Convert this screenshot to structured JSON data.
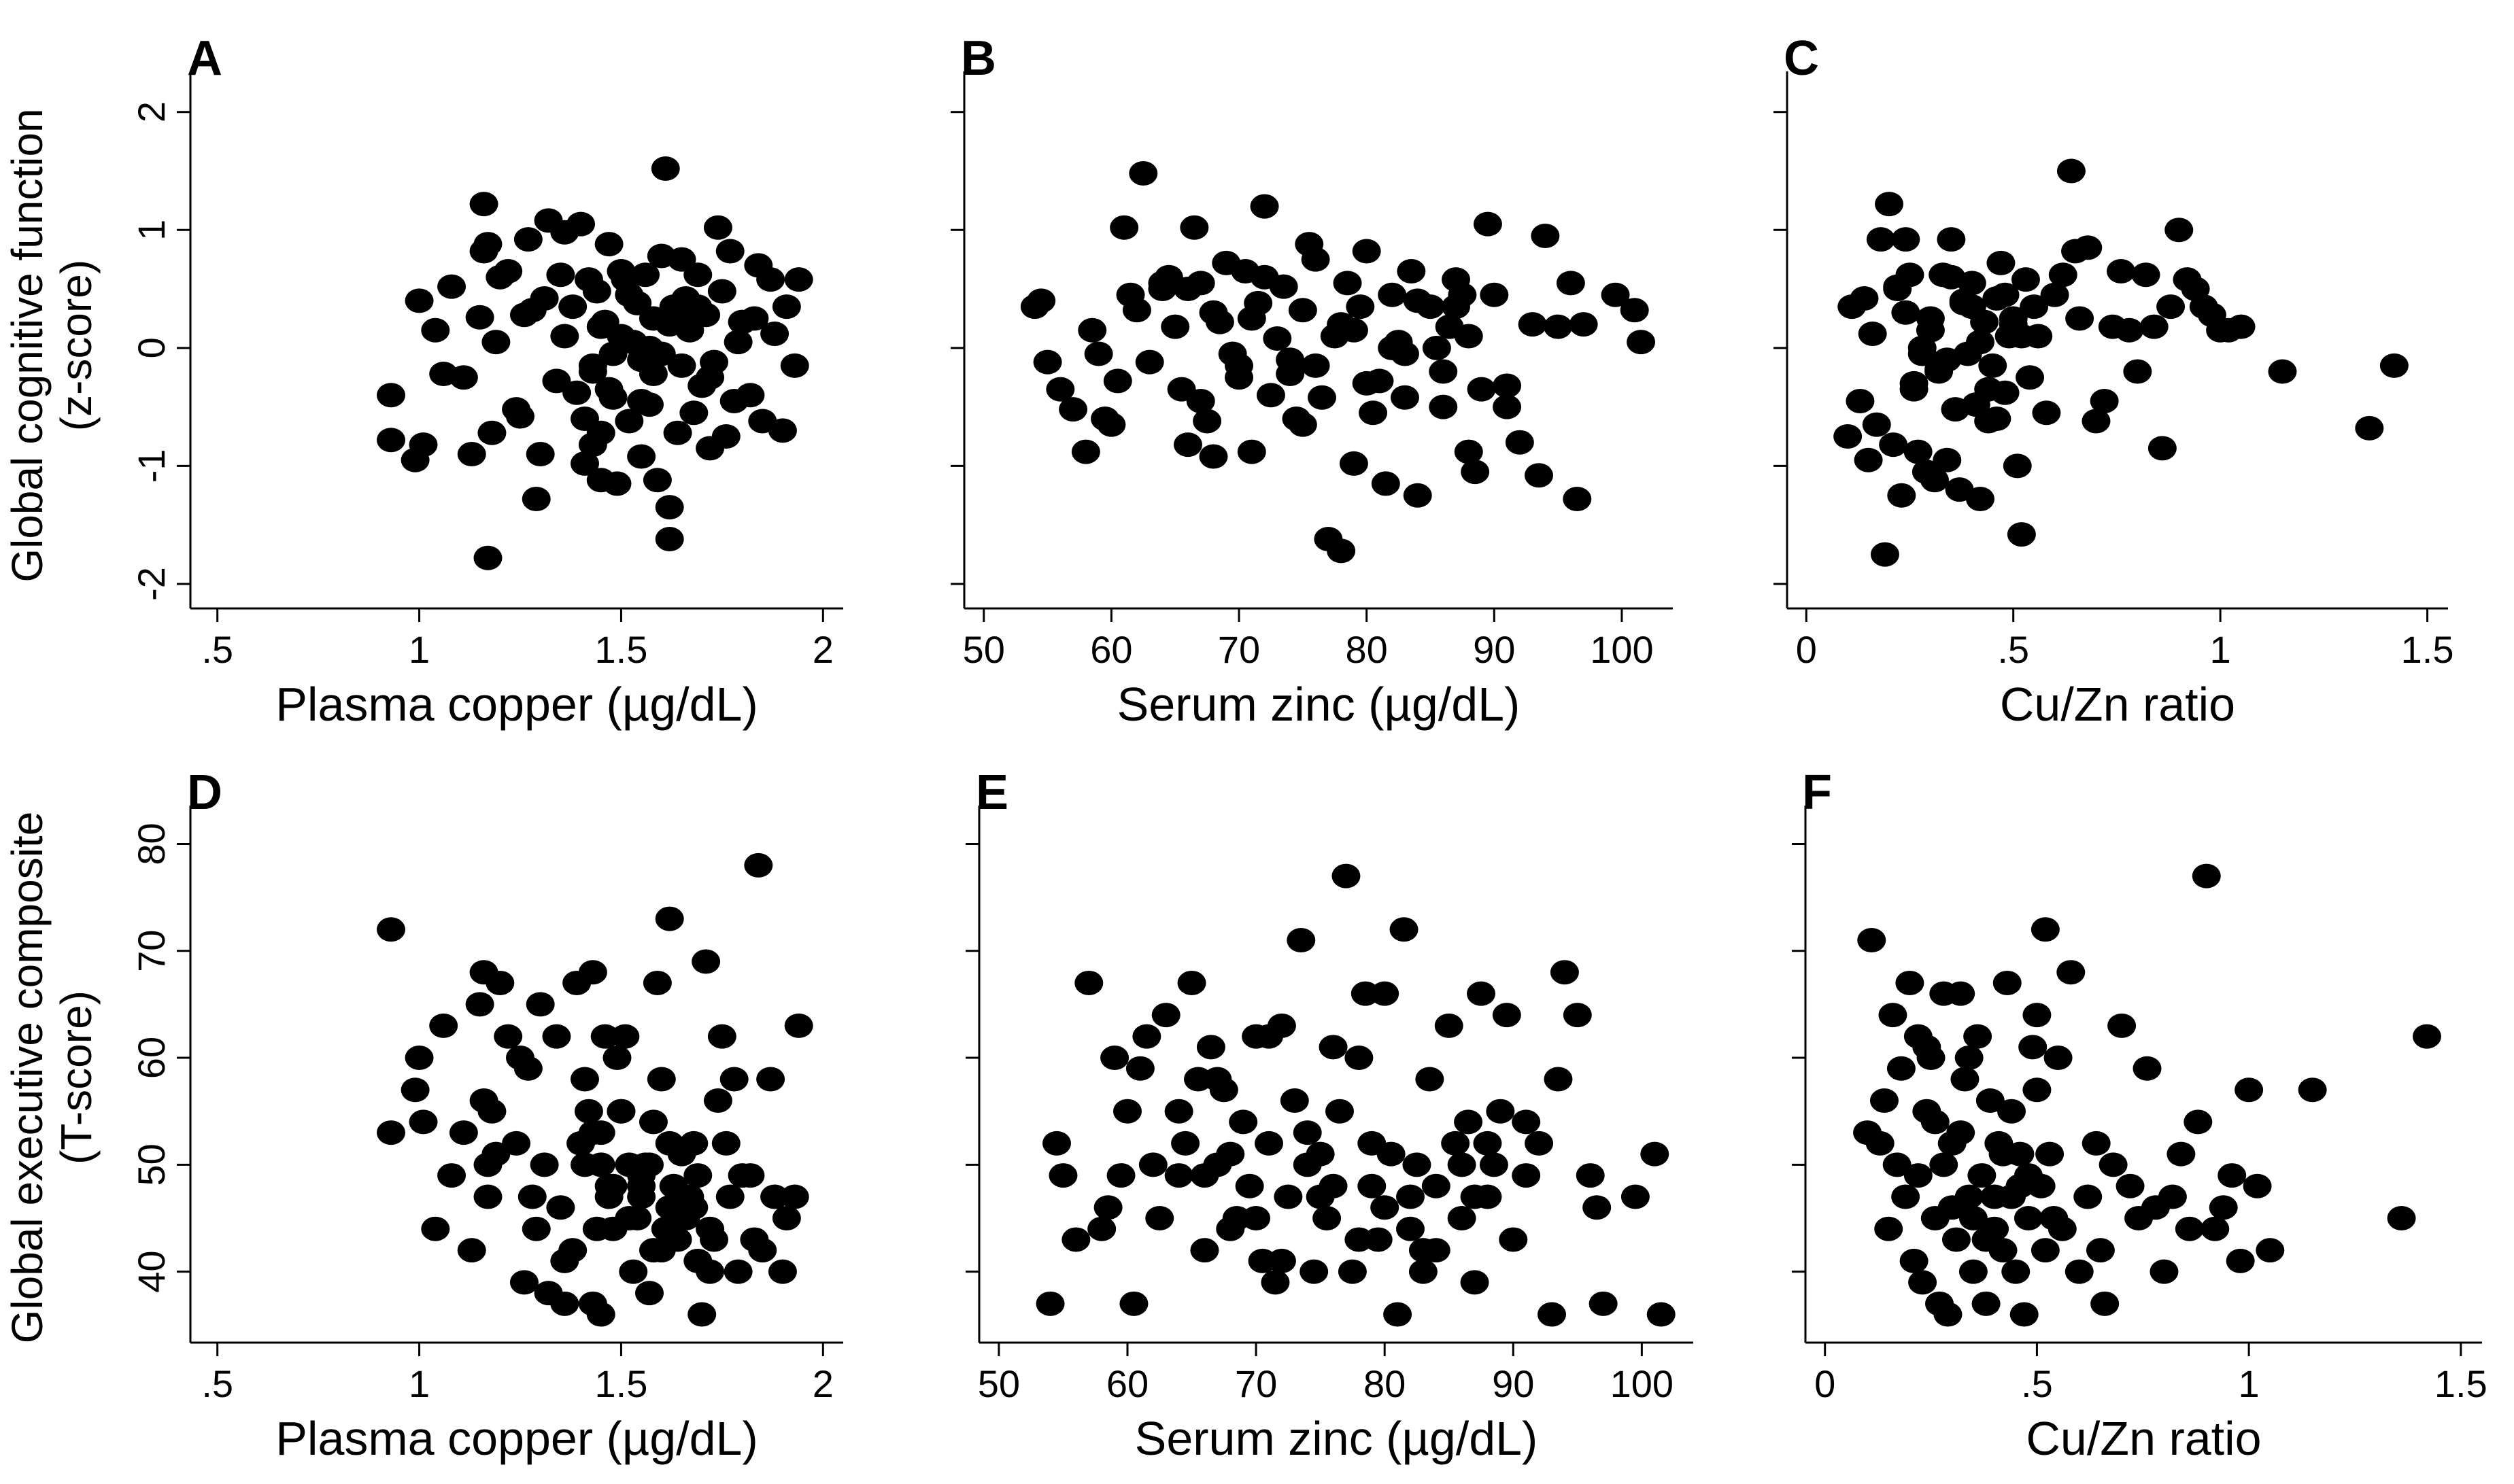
{
  "row_titles": [
    {
      "line1": "Global cognitive function",
      "line2": "(z-score)"
    },
    {
      "line1": "Global executive composite",
      "line2": "(T-score)"
    }
  ],
  "point_color": "#000000",
  "chart_data": [
    {
      "panel": "A",
      "type": "scatter",
      "xlabel": "Plasma copper (µg/dL)",
      "xlim": [
        0.45,
        2.05
      ],
      "ylim": [
        -2.15,
        2.2
      ],
      "xticks": [
        0.5,
        1,
        1.5,
        2
      ],
      "xtick_labels": [
        ".5",
        "1",
        "1.5",
        "2"
      ],
      "yticks": [
        -2,
        -1,
        0,
        1,
        2
      ],
      "ytick_labels": [
        "-2",
        "-1",
        "0",
        "1",
        "2"
      ],
      "x": [
        0.93,
        0.93,
        0.99,
        1.0,
        1.01,
        1.04,
        1.06,
        1.08,
        1.11,
        1.13,
        1.15,
        1.16,
        1.16,
        1.17,
        1.17,
        1.18,
        1.19,
        1.2,
        1.22,
        1.24,
        1.25,
        1.26,
        1.27,
        1.28,
        1.29,
        1.3,
        1.31,
        1.32,
        1.34,
        1.35,
        1.36,
        1.38,
        1.39,
        1.4,
        1.41,
        1.42,
        1.43,
        1.43,
        1.44,
        1.45,
        1.45,
        1.46,
        1.47,
        1.48,
        1.49,
        1.5,
        1.51,
        1.52,
        1.53,
        1.54,
        1.55,
        1.56,
        1.57,
        1.58,
        1.59,
        1.6,
        1.61,
        1.62,
        1.62,
        1.63,
        1.64,
        1.65,
        1.66,
        1.67,
        1.68,
        1.69,
        1.7,
        1.71,
        1.72,
        1.73,
        1.74,
        1.75,
        1.76,
        1.77,
        1.78,
        1.79,
        1.8,
        1.82,
        1.83,
        1.84,
        1.85,
        1.87,
        1.88,
        1.9,
        1.91,
        1.93,
        1.94,
        1.45,
        1.48,
        1.52,
        1.58,
        1.41,
        1.36,
        1.55,
        1.62,
        1.68,
        1.72,
        1.5,
        1.47,
        1.6,
        1.57,
        1.43,
        1.65,
        1.69,
        1.55
      ],
      "y": [
        -0.4,
        -0.78,
        -0.95,
        0.4,
        -0.82,
        0.15,
        -0.22,
        0.52,
        -0.25,
        -0.9,
        0.26,
        0.82,
        1.22,
        -1.78,
        0.88,
        -0.72,
        0.05,
        0.6,
        0.65,
        -0.52,
        -0.58,
        0.28,
        0.92,
        0.32,
        -1.28,
        -0.9,
        0.42,
        1.08,
        -0.28,
        0.62,
        0.98,
        0.35,
        -0.38,
        1.05,
        -0.98,
        0.58,
        -0.15,
        -0.82,
        0.48,
        -0.72,
        -1.12,
        0.22,
        0.88,
        -0.42,
        -1.15,
        0.1,
        0.58,
        -0.62,
        0.05,
        0.38,
        -0.92,
        0.62,
        -0.48,
        -0.22,
        -1.12,
        0.78,
        1.52,
        -1.35,
        -1.62,
        0.35,
        -0.72,
        -0.15,
        0.42,
        0.15,
        -0.55,
        0.62,
        -0.32,
        0.28,
        -0.85,
        -0.12,
        1.02,
        0.48,
        -0.75,
        0.82,
        -0.45,
        0.05,
        0.22,
        -0.4,
        0.25,
        0.7,
        -0.62,
        0.58,
        0.12,
        -0.7,
        0.35,
        -0.15,
        0.58,
        0.18,
        -0.05,
        0.45,
        0.25,
        -0.6,
        0.1,
        -0.1,
        0.2,
        0.3,
        -0.25,
        0.65,
        -0.35,
        -0.05,
        0.0,
        -0.2,
        0.75,
        0.35,
        -0.45
      ]
    },
    {
      "panel": "B",
      "type": "scatter",
      "xlabel": "Serum zinc (µg/dL)",
      "xlim": [
        49,
        104
      ],
      "ylim": [
        -2.15,
        2.2
      ],
      "xticks": [
        50,
        60,
        70,
        80,
        90,
        100
      ],
      "xtick_labels": [
        "50",
        "60",
        "70",
        "80",
        "90",
        "100"
      ],
      "yticks": [
        -2,
        -1,
        0,
        1,
        2
      ],
      "ytick_labels": [
        "",
        "",
        "",
        "",
        ""
      ],
      "x": [
        54,
        54.5,
        55,
        56,
        57,
        58,
        58.5,
        59,
        59.5,
        60,
        60.5,
        61,
        61.5,
        62,
        62.5,
        63,
        64,
        64.5,
        65,
        65.5,
        66,
        66.5,
        67,
        67.5,
        68,
        68.5,
        69,
        69.5,
        70,
        70.5,
        71,
        71.5,
        72,
        72.5,
        73,
        73.5,
        74,
        74.5,
        75,
        75.5,
        76,
        76.5,
        77,
        77.5,
        78,
        78.5,
        79,
        79.5,
        80,
        80.5,
        81,
        81.5,
        82,
        82.5,
        83,
        83.5,
        84,
        85,
        85.5,
        86,
        86.5,
        87,
        87.5,
        88,
        88.5,
        89,
        89.5,
        90,
        91,
        92,
        93,
        93.5,
        94,
        95,
        96,
        96.5,
        97,
        99.5,
        101,
        101.5,
        66,
        68,
        70,
        72,
        74,
        76,
        78,
        80,
        82,
        84,
        86,
        88,
        64,
        67,
        71,
        75,
        79,
        83,
        87,
        91
      ],
      "y": [
        0.35,
        0.4,
        -0.12,
        -0.35,
        -0.52,
        -0.88,
        0.15,
        -0.05,
        -0.6,
        -0.65,
        -0.28,
        1.02,
        0.45,
        0.32,
        1.48,
        -0.12,
        0.55,
        0.6,
        0.18,
        -0.35,
        -0.82,
        1.02,
        0.55,
        -0.62,
        -0.92,
        0.22,
        0.72,
        -0.05,
        -0.15,
        0.65,
        -0.88,
        0.38,
        1.2,
        -0.4,
        0.08,
        0.52,
        -0.22,
        -0.6,
        0.32,
        0.88,
        -0.15,
        -0.42,
        -1.62,
        0.1,
        -1.72,
        0.55,
        -0.98,
        0.35,
        0.82,
        -0.55,
        -0.28,
        -1.15,
        0.45,
        0.05,
        -0.42,
        0.65,
        -1.25,
        0.35,
        0.0,
        -0.5,
        0.18,
        0.58,
        0.45,
        -0.88,
        -1.05,
        -0.35,
        1.05,
        0.45,
        -0.32,
        -0.8,
        0.2,
        -1.08,
        0.95,
        0.18,
        0.55,
        -1.28,
        0.2,
        0.45,
        0.32,
        0.05,
        0.5,
        0.3,
        -0.25,
        0.6,
        -0.1,
        0.75,
        0.2,
        -0.3,
        0.0,
        0.4,
        -0.2,
        0.1,
        0.5,
        -0.45,
        0.25,
        -0.65,
        0.15,
        -0.05,
        0.35,
        -0.5
      ]
    },
    {
      "panel": "C",
      "type": "scatter",
      "xlabel": "Cu/Zn ratio",
      "xlim": [
        -0.03,
        1.55
      ],
      "ylim": [
        -2.15,
        2.2
      ],
      "xticks": [
        0,
        0.5,
        1,
        1.5
      ],
      "xtick_labels": [
        "0",
        ".5",
        "1",
        "1.5"
      ],
      "yticks": [
        -2,
        -1,
        0,
        1,
        2
      ],
      "ytick_labels": [
        "",
        "",
        "",
        "",
        ""
      ],
      "x": [
        0.1,
        0.11,
        0.13,
        0.14,
        0.15,
        0.16,
        0.17,
        0.18,
        0.19,
        0.2,
        0.21,
        0.22,
        0.23,
        0.24,
        0.25,
        0.26,
        0.27,
        0.28,
        0.29,
        0.3,
        0.31,
        0.32,
        0.33,
        0.34,
        0.35,
        0.36,
        0.37,
        0.38,
        0.39,
        0.4,
        0.41,
        0.42,
        0.43,
        0.44,
        0.45,
        0.46,
        0.47,
        0.48,
        0.49,
        0.5,
        0.51,
        0.52,
        0.53,
        0.54,
        0.55,
        0.56,
        0.58,
        0.6,
        0.62,
        0.64,
        0.65,
        0.66,
        0.68,
        0.7,
        0.72,
        0.74,
        0.76,
        0.78,
        0.8,
        0.82,
        0.84,
        0.86,
        0.88,
        0.9,
        0.92,
        0.94,
        0.96,
        0.98,
        1.0,
        1.02,
        1.05,
        1.15,
        1.36,
        1.42,
        0.22,
        0.26,
        0.3,
        0.34,
        0.38,
        0.42,
        0.46,
        0.5,
        0.35,
        0.28,
        0.44,
        0.52,
        0.4,
        0.32,
        0.24,
        0.48
      ],
      "y": [
        -0.75,
        0.35,
        -0.45,
        0.42,
        -0.95,
        0.12,
        -0.65,
        0.92,
        -1.75,
        1.22,
        -0.82,
        0.52,
        -1.25,
        0.92,
        0.62,
        -0.35,
        -0.88,
        -0.05,
        -1.05,
        0.15,
        -1.12,
        -0.18,
        0.62,
        -0.95,
        0.92,
        -0.52,
        -1.2,
        0.38,
        -0.05,
        0.55,
        -0.48,
        -1.28,
        0.22,
        -0.62,
        -0.15,
        0.42,
        0.72,
        -0.38,
        0.1,
        0.25,
        -1.0,
        -1.58,
        0.58,
        -0.25,
        0.35,
        0.1,
        -0.55,
        0.45,
        0.62,
        1.5,
        0.82,
        0.25,
        0.85,
        -0.62,
        -0.45,
        0.18,
        0.65,
        0.15,
        -0.2,
        0.62,
        0.18,
        -0.85,
        0.35,
        1.0,
        0.58,
        0.5,
        0.35,
        0.28,
        0.15,
        0.15,
        0.18,
        -0.2,
        -0.68,
        -0.15,
        0.5,
        -0.3,
        0.25,
        -0.1,
        0.4,
        0.05,
        -0.6,
        0.2,
        0.6,
        0.0,
        -0.35,
        0.1,
        0.35,
        -0.2,
        0.3,
        0.45
      ]
    },
    {
      "panel": "D",
      "type": "scatter",
      "xlabel": "Plasma copper (µg/dL)",
      "xlim": [
        0.45,
        2.05
      ],
      "ylim": [
        34,
        82
      ],
      "xticks": [
        0.5,
        1,
        1.5,
        2
      ],
      "xtick_labels": [
        ".5",
        "1",
        "1.5",
        "2"
      ],
      "yticks": [
        40,
        50,
        60,
        70,
        80
      ],
      "ytick_labels": [
        "40",
        "50",
        "60",
        "70",
        "80"
      ],
      "x": [
        0.93,
        0.93,
        0.99,
        1.0,
        1.01,
        1.04,
        1.06,
        1.08,
        1.11,
        1.13,
        1.15,
        1.16,
        1.16,
        1.17,
        1.17,
        1.18,
        1.19,
        1.2,
        1.22,
        1.24,
        1.25,
        1.26,
        1.27,
        1.28,
        1.29,
        1.3,
        1.31,
        1.32,
        1.34,
        1.35,
        1.36,
        1.38,
        1.39,
        1.4,
        1.41,
        1.42,
        1.43,
        1.43,
        1.44,
        1.45,
        1.45,
        1.46,
        1.47,
        1.48,
        1.49,
        1.5,
        1.51,
        1.52,
        1.53,
        1.54,
        1.55,
        1.56,
        1.57,
        1.58,
        1.59,
        1.6,
        1.61,
        1.62,
        1.62,
        1.63,
        1.64,
        1.65,
        1.66,
        1.67,
        1.68,
        1.69,
        1.7,
        1.71,
        1.72,
        1.73,
        1.74,
        1.75,
        1.76,
        1.77,
        1.78,
        1.79,
        1.8,
        1.82,
        1.83,
        1.84,
        1.85,
        1.87,
        1.88,
        1.9,
        1.91,
        1.93,
        1.94,
        1.45,
        1.48,
        1.52,
        1.58,
        1.41,
        1.36,
        1.55,
        1.62,
        1.68,
        1.72,
        1.5,
        1.47,
        1.6,
        1.57,
        1.43,
        1.65,
        1.69,
        1.55
      ],
      "y": [
        72,
        53,
        57,
        60,
        54,
        44,
        63,
        49,
        53,
        42,
        65,
        68,
        56,
        50,
        47,
        55,
        51,
        67,
        62,
        52,
        60,
        39,
        59,
        47,
        44,
        65,
        50,
        38,
        62,
        46,
        37,
        42,
        67,
        52,
        50,
        55,
        37,
        68,
        44,
        53,
        36,
        62,
        48,
        44,
        60,
        55,
        62,
        50,
        40,
        45,
        47,
        50,
        38,
        42,
        67,
        58,
        44,
        73,
        52,
        48,
        43,
        51,
        45,
        47,
        46,
        49,
        36,
        69,
        40,
        43,
        56,
        62,
        52,
        47,
        58,
        40,
        49,
        49,
        43,
        78,
        42,
        58,
        47,
        40,
        45,
        47,
        63,
        50,
        48,
        45,
        54,
        58,
        41,
        49,
        46,
        52,
        44,
        55,
        47,
        42,
        50,
        53,
        46,
        41,
        48
      ]
    },
    {
      "panel": "E",
      "type": "scatter",
      "xlabel": "Serum zinc (µg/dL)",
      "xlim": [
        49,
        104
      ],
      "ylim": [
        34,
        82
      ],
      "xticks": [
        50,
        60,
        70,
        80,
        90,
        100
      ],
      "xtick_labels": [
        "50",
        "60",
        "70",
        "80",
        "90",
        "100"
      ],
      "yticks": [
        40,
        50,
        60,
        70,
        80
      ],
      "ytick_labels": [
        "",
        "",
        "",
        "",
        ""
      ],
      "x": [
        54,
        54.5,
        55,
        56,
        57,
        58,
        58.5,
        59,
        59.5,
        60,
        60.5,
        61,
        61.5,
        62,
        62.5,
        63,
        64,
        64.5,
        65,
        65.5,
        66,
        66.5,
        67,
        67.5,
        68,
        68.5,
        69,
        69.5,
        70,
        70.5,
        71,
        71.5,
        72,
        72.5,
        73,
        73.5,
        74,
        74.5,
        75,
        75.5,
        76,
        76.5,
        77,
        77.5,
        78,
        78.5,
        79,
        79.5,
        80,
        80.5,
        81,
        81.5,
        82,
        82.5,
        83,
        83.5,
        84,
        85,
        85.5,
        86,
        86.5,
        87,
        87.5,
        88,
        88.5,
        89,
        89.5,
        90,
        91,
        92,
        93,
        93.5,
        94,
        95,
        96,
        96.5,
        97,
        99.5,
        101,
        101.5,
        66,
        68,
        70,
        72,
        74,
        76,
        78,
        80,
        82,
        84,
        86,
        88,
        64,
        67,
        71,
        75,
        79,
        83,
        87,
        91
      ],
      "y": [
        37,
        52,
        49,
        43,
        67,
        44,
        46,
        60,
        49,
        55,
        37,
        59,
        62,
        50,
        45,
        64,
        49,
        52,
        67,
        58,
        42,
        61,
        50,
        57,
        44,
        45,
        54,
        48,
        62,
        41,
        52,
        39,
        63,
        47,
        56,
        71,
        50,
        40,
        47,
        45,
        61,
        55,
        77,
        40,
        60,
        66,
        52,
        43,
        66,
        51,
        36,
        72,
        47,
        50,
        40,
        58,
        42,
        63,
        52,
        45,
        54,
        39,
        66,
        47,
        50,
        55,
        64,
        43,
        49,
        52,
        36,
        58,
        68,
        64,
        49,
        46,
        37,
        47,
        51,
        36,
        49,
        51,
        45,
        41,
        53,
        48,
        43,
        46,
        44,
        48,
        50,
        52,
        55,
        58,
        62,
        51,
        48,
        42,
        47,
        54
      ]
    },
    {
      "panel": "F",
      "type": "scatter",
      "xlabel": "Cu/Zn ratio",
      "xlim": [
        -0.03,
        1.55
      ],
      "ylim": [
        34,
        82
      ],
      "xticks": [
        0,
        0.5,
        1,
        1.5
      ],
      "xtick_labels": [
        "0",
        ".5",
        "1",
        "1.5"
      ],
      "yticks": [
        40,
        50,
        60,
        70,
        80
      ],
      "ytick_labels": [
        "",
        "",
        "",
        "",
        ""
      ],
      "x": [
        0.1,
        0.11,
        0.13,
        0.14,
        0.15,
        0.16,
        0.17,
        0.18,
        0.19,
        0.2,
        0.21,
        0.22,
        0.23,
        0.24,
        0.25,
        0.26,
        0.27,
        0.28,
        0.29,
        0.3,
        0.31,
        0.32,
        0.33,
        0.34,
        0.35,
        0.36,
        0.37,
        0.38,
        0.39,
        0.4,
        0.41,
        0.42,
        0.43,
        0.44,
        0.45,
        0.46,
        0.47,
        0.48,
        0.49,
        0.5,
        0.51,
        0.52,
        0.53,
        0.54,
        0.55,
        0.56,
        0.58,
        0.6,
        0.62,
        0.64,
        0.65,
        0.66,
        0.68,
        0.7,
        0.72,
        0.74,
        0.76,
        0.78,
        0.8,
        0.82,
        0.84,
        0.86,
        0.88,
        0.9,
        0.92,
        0.94,
        0.96,
        0.98,
        1.0,
        1.02,
        1.05,
        1.15,
        1.36,
        1.42,
        0.22,
        0.26,
        0.3,
        0.34,
        0.38,
        0.42,
        0.46,
        0.5,
        0.35,
        0.28,
        0.44,
        0.52,
        0.4,
        0.32,
        0.24,
        0.48
      ],
      "y": [
        53,
        71,
        52,
        56,
        44,
        64,
        50,
        59,
        47,
        67,
        41,
        62,
        39,
        55,
        60,
        45,
        37,
        66,
        36,
        52,
        43,
        66,
        58,
        47,
        40,
        62,
        49,
        37,
        56,
        44,
        52,
        42,
        67,
        47,
        40,
        51,
        36,
        45,
        61,
        64,
        48,
        72,
        51,
        45,
        60,
        44,
        68,
        40,
        47,
        52,
        42,
        37,
        50,
        63,
        48,
        45,
        59,
        46,
        40,
        47,
        51,
        44,
        54,
        77,
        44,
        46,
        49,
        41,
        57,
        48,
        42,
        57,
        45,
        62,
        49,
        54,
        46,
        60,
        43,
        51,
        48,
        57,
        45,
        50,
        55,
        42,
        47,
        53,
        61,
        49
      ]
    }
  ]
}
